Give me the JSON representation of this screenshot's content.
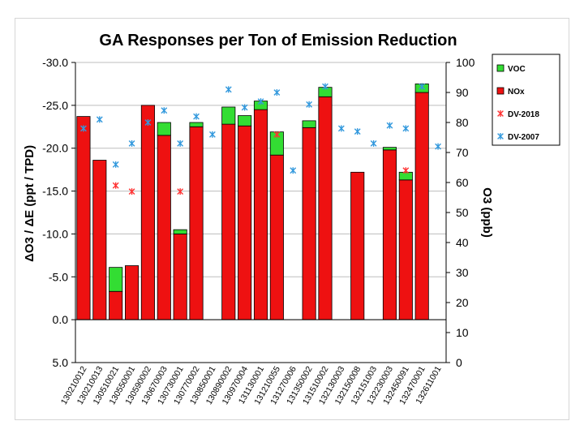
{
  "chart_data": {
    "type": "bar",
    "title": "GA Responses per Ton of Emission Reduction",
    "ylabel_left": "ΔO3 / ΔE (ppt / TPD)",
    "ylabel_right": "O3 (ppb)",
    "left_axis": {
      "min": -30.0,
      "max": 5.0,
      "step": 5.0,
      "inverted": true,
      "tick_labels": [
        "-30.0",
        "-25.0",
        "-20.0",
        "-15.0",
        "-10.0",
        "-5.0",
        "0.0",
        "5.0"
      ]
    },
    "right_axis": {
      "min": 0,
      "max": 100,
      "step": 10,
      "tick_labels": [
        "0",
        "10",
        "20",
        "30",
        "40",
        "50",
        "60",
        "70",
        "80",
        "90",
        "100"
      ]
    },
    "grid": true,
    "legend_position": "right",
    "categories": [
      "130210012",
      "130210013",
      "130510021",
      "130550001",
      "130590002",
      "130670003",
      "130730001",
      "130770002",
      "130850001",
      "130890002",
      "130970004",
      "131130001",
      "131210055",
      "131270006",
      "131350002",
      "131510002",
      "132130003",
      "132150008",
      "132151003",
      "132230003",
      "132450091",
      "132470001",
      "132611001"
    ],
    "series": [
      {
        "name": "VOC",
        "kind": "bar",
        "color": "#33dd33",
        "values": [
          0,
          0,
          -2.8,
          0,
          0,
          -1.5,
          -0.5,
          -0.5,
          0,
          -2.0,
          -1.2,
          -1.0,
          -2.7,
          0,
          -0.8,
          -1.1,
          0,
          0,
          0,
          -0.3,
          -0.9,
          -1.0,
          0
        ]
      },
      {
        "name": "NOx",
        "kind": "bar",
        "color": "#ee1111",
        "values": [
          -23.7,
          -18.6,
          -3.3,
          -6.3,
          -25.0,
          -21.5,
          -10.0,
          -22.5,
          0,
          -22.8,
          -22.6,
          -24.5,
          -19.2,
          0,
          -22.4,
          -26.0,
          0,
          -17.2,
          0,
          -19.8,
          -16.3,
          -26.5,
          0
        ]
      },
      {
        "name": "DV-2018",
        "kind": "marker",
        "axis": "right",
        "color": "#ff3333",
        "values": [
          null,
          null,
          59,
          57,
          null,
          null,
          57,
          null,
          null,
          null,
          null,
          null,
          76,
          null,
          null,
          null,
          null,
          null,
          null,
          null,
          64,
          null,
          null
        ]
      },
      {
        "name": "DV-2007",
        "kind": "marker",
        "axis": "right",
        "color": "#3399dd",
        "values": [
          78,
          81,
          66,
          73,
          80,
          84,
          73,
          82,
          76,
          91,
          85,
          87,
          90,
          64,
          86,
          92,
          78,
          77,
          73,
          79,
          78,
          92,
          72
        ]
      }
    ]
  }
}
